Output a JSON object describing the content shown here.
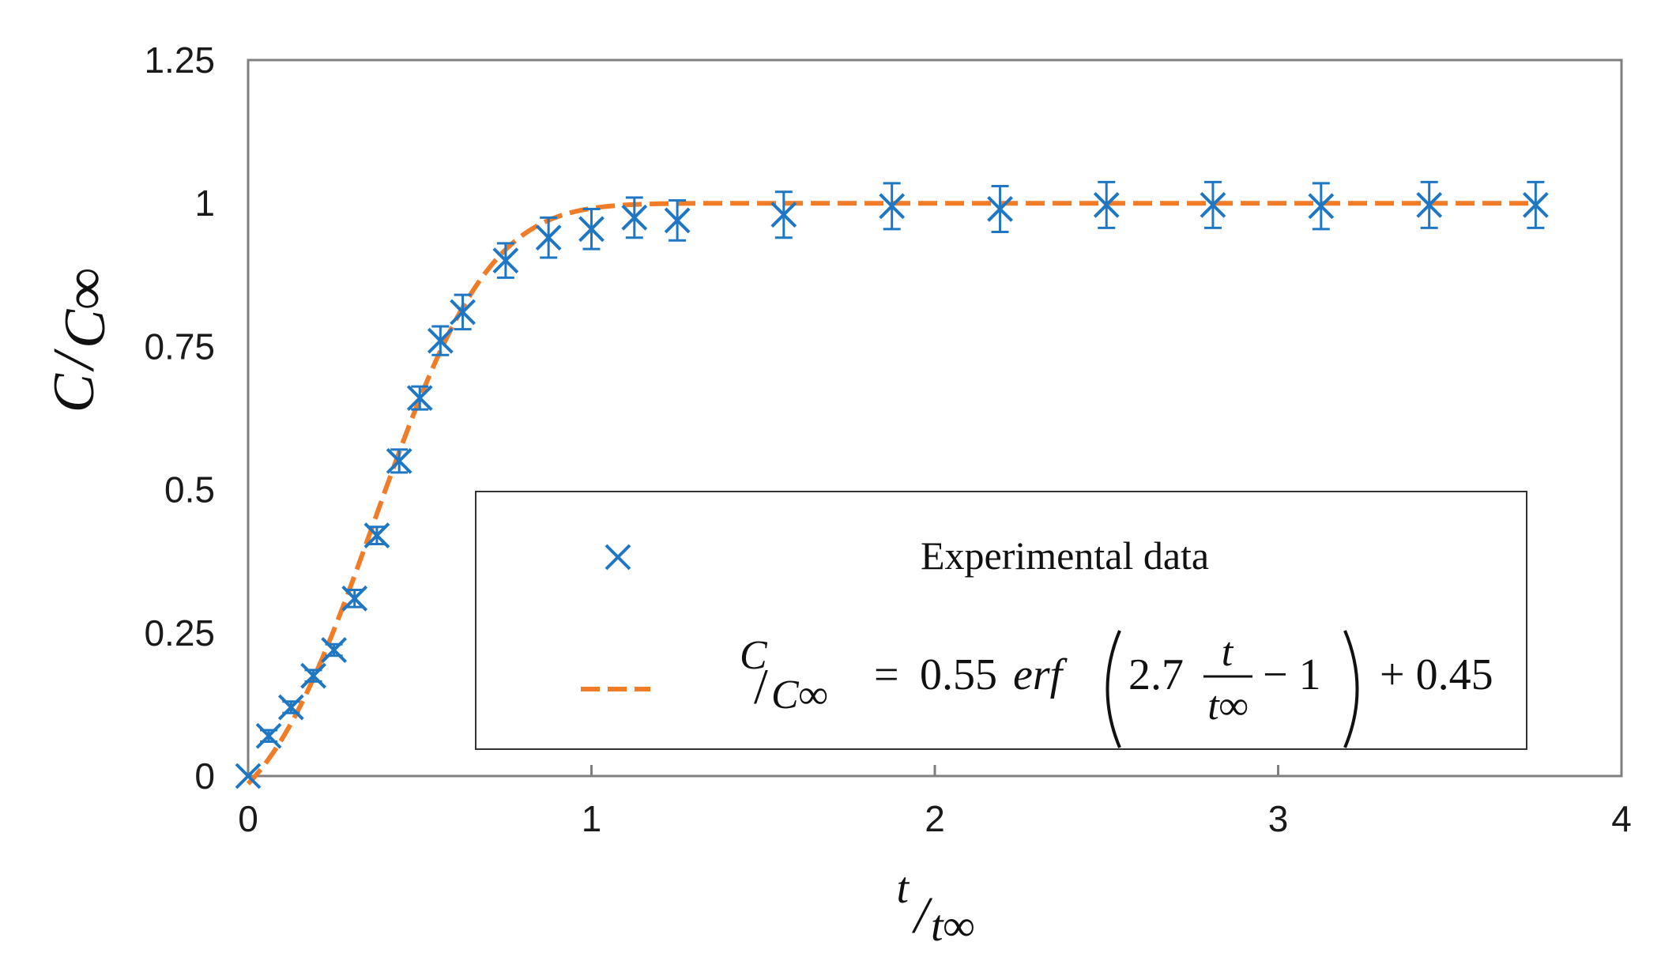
{
  "chart_data": {
    "type": "scatter",
    "title": "",
    "x_ticks": [
      "0",
      "1",
      "2",
      "3",
      "4"
    ],
    "y_ticks": [
      "0",
      "0.25",
      "0.5",
      "0.75",
      "1",
      "1.25"
    ],
    "xlim": [
      0,
      4
    ],
    "ylim": [
      0,
      1.25
    ],
    "grid": false,
    "legend_position": "lower-right",
    "xlabel": {
      "num": "t",
      "den": "t∞"
    },
    "ylabel": {
      "num": "C",
      "den": "C∞"
    },
    "colors": {
      "experimental": "#1f77c4",
      "model": "#f07c28",
      "axes": "#7f7f7f"
    },
    "series": [
      {
        "name": "Experimental data",
        "kind": "markers-with-error-bars",
        "marker": "x",
        "x": [
          0,
          0.06,
          0.125,
          0.19,
          0.25,
          0.31,
          0.375,
          0.44,
          0.5,
          0.56,
          0.625,
          0.75,
          0.875,
          1.0,
          1.125,
          1.25,
          1.56,
          1.875,
          2.19,
          2.5,
          2.81,
          3.125,
          3.44,
          3.75
        ],
        "y": [
          0,
          0.07,
          0.12,
          0.175,
          0.22,
          0.31,
          0.42,
          0.55,
          0.66,
          0.76,
          0.81,
          0.9,
          0.94,
          0.955,
          0.975,
          0.97,
          0.98,
          0.995,
          0.99,
          0.997,
          0.997,
          0.995,
          0.997,
          0.997
        ],
        "yerr": [
          0,
          0.01,
          0.01,
          0.01,
          0.01,
          0.015,
          0.015,
          0.02,
          0.02,
          0.025,
          0.03,
          0.03,
          0.035,
          0.035,
          0.035,
          0.035,
          0.04,
          0.04,
          0.04,
          0.04,
          0.04,
          0.04,
          0.04,
          0.04
        ]
      },
      {
        "name": "C/C∞ = 0.55 erf(2.7 t/t∞ − 1) + 0.45",
        "kind": "dashed-line",
        "formula": {
          "a": 0.55,
          "k": 2.7,
          "shift": 1,
          "b": 0.45
        }
      }
    ],
    "legend": {
      "experimental_label": "Experimental data",
      "model_formula": {
        "lhs_num": "C",
        "lhs_den": "C∞",
        "equals": "=",
        "coef": "0.55",
        "func": "erf",
        "inner_coef": "2.7",
        "frac_num": "t",
        "frac_den": "t∞",
        "minus_one": "− 1",
        "plus_const": "+ 0.45"
      }
    }
  }
}
